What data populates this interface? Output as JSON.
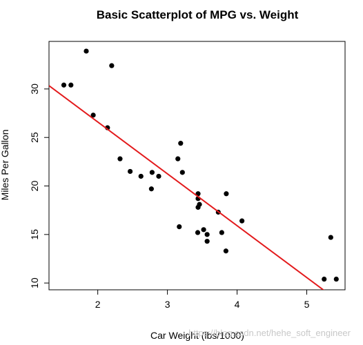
{
  "chart_data": {
    "type": "scatter",
    "title": "Basic Scatterplot of MPG vs. Weight",
    "xlabel": "Car Weight (lbs/1000)",
    "ylabel": "Miles Per Gallon",
    "xlim": [
      1.3,
      5.55
    ],
    "ylim": [
      9.3,
      34.9
    ],
    "xticks": [
      2,
      3,
      4,
      5
    ],
    "yticks": [
      10,
      15,
      20,
      25,
      30
    ],
    "grid": false,
    "point_color": "#000000",
    "line_color": "#e31a1c",
    "points": [
      {
        "x": 2.62,
        "y": 21.0
      },
      {
        "x": 2.875,
        "y": 21.0
      },
      {
        "x": 2.32,
        "y": 22.8
      },
      {
        "x": 3.215,
        "y": 21.4
      },
      {
        "x": 3.44,
        "y": 18.7
      },
      {
        "x": 3.46,
        "y": 18.1
      },
      {
        "x": 3.57,
        "y": 14.3
      },
      {
        "x": 3.19,
        "y": 24.4
      },
      {
        "x": 3.15,
        "y": 22.8
      },
      {
        "x": 3.44,
        "y": 19.2
      },
      {
        "x": 3.44,
        "y": 17.8
      },
      {
        "x": 4.07,
        "y": 16.4
      },
      {
        "x": 3.73,
        "y": 17.3
      },
      {
        "x": 3.78,
        "y": 15.2
      },
      {
        "x": 5.25,
        "y": 10.4
      },
      {
        "x": 5.424,
        "y": 10.4
      },
      {
        "x": 5.345,
        "y": 14.7
      },
      {
        "x": 2.2,
        "y": 32.4
      },
      {
        "x": 1.615,
        "y": 30.4
      },
      {
        "x": 1.835,
        "y": 33.9
      },
      {
        "x": 2.465,
        "y": 21.5
      },
      {
        "x": 3.52,
        "y": 15.5
      },
      {
        "x": 3.435,
        "y": 15.2
      },
      {
        "x": 3.84,
        "y": 13.3
      },
      {
        "x": 3.845,
        "y": 19.2
      },
      {
        "x": 1.935,
        "y": 27.3
      },
      {
        "x": 2.14,
        "y": 26.0
      },
      {
        "x": 1.513,
        "y": 30.4
      },
      {
        "x": 3.17,
        "y": 15.8
      },
      {
        "x": 2.77,
        "y": 19.7
      },
      {
        "x": 3.57,
        "y": 15.0
      },
      {
        "x": 2.78,
        "y": 21.4
      }
    ],
    "fit_line": {
      "intercept": 37.285,
      "slope": -5.344
    }
  },
  "watermark": "https://blog.csdn.net/hehe_soft_engineer"
}
